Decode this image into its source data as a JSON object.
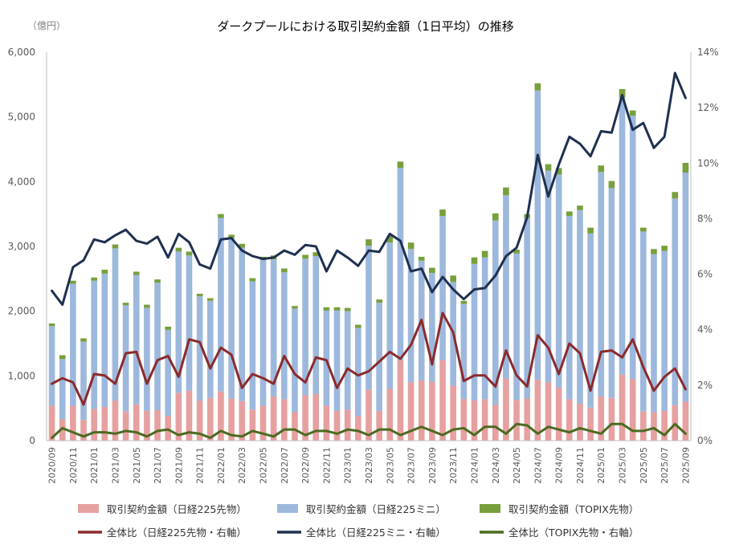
{
  "chart_data": {
    "type": "bar",
    "title": "ダークプールにおける取引契約金額（1日平均）の推移",
    "y_unit_label": "（億円）",
    "y_left": {
      "range": [
        0,
        6000
      ],
      "ticks": [
        0,
        1000,
        2000,
        3000,
        4000,
        5000,
        6000
      ],
      "tick_labels": [
        "0",
        "1,000",
        "2,000",
        "3,000",
        "4,000",
        "5,000",
        "6,000"
      ]
    },
    "y_right": {
      "range": [
        0,
        14
      ],
      "ticks": [
        0,
        2,
        4,
        6,
        8,
        10,
        12,
        14
      ],
      "tick_labels": [
        "0%",
        "2%",
        "4%",
        "6%",
        "8%",
        "10%",
        "12%",
        "14%"
      ]
    },
    "x_tick_labels": [
      "2020/09",
      "2020/11",
      "2021/01",
      "2021/03",
      "2021/05",
      "2021/07",
      "2021/09",
      "2021/11",
      "2022/01",
      "2022/03",
      "2022/05",
      "2022/07",
      "2022/09",
      "2022/11",
      "2023/01",
      "2023/03",
      "2023/05",
      "2023/07",
      "2023/09",
      "2023/11",
      "2024/01",
      "2024/03",
      "2024/05",
      "2024/07",
      "2024/09",
      "2024/11",
      "2025/01",
      "2025/03",
      "2025/05",
      "2025/07",
      "2025/09"
    ],
    "categories": [
      "2020/09",
      "2020/10",
      "2020/11",
      "2020/12",
      "2021/01",
      "2021/02",
      "2021/03",
      "2021/04",
      "2021/05",
      "2021/06",
      "2021/07",
      "2021/08",
      "2021/09",
      "2021/10",
      "2021/11",
      "2021/12",
      "2022/01",
      "2022/02",
      "2022/03",
      "2022/04",
      "2022/05",
      "2022/06",
      "2022/07",
      "2022/08",
      "2022/09",
      "2022/10",
      "2022/11",
      "2022/12",
      "2023/01",
      "2023/02",
      "2023/03",
      "2023/04",
      "2023/05",
      "2023/06",
      "2023/07",
      "2023/08",
      "2023/09",
      "2023/10",
      "2023/11",
      "2023/12",
      "2024/01",
      "2024/02",
      "2024/03",
      "2024/04",
      "2024/05",
      "2024/06",
      "2024/07",
      "2024/08",
      "2024/09",
      "2024/10",
      "2024/11",
      "2024/12",
      "2025/01",
      "2025/02",
      "2025/03",
      "2025/04",
      "2025/05",
      "2025/06",
      "2025/07",
      "2025/08",
      "2025/09"
    ],
    "series": [
      {
        "name": "取引契約金額（日経225先物）",
        "kind": "bar",
        "axis": "left",
        "color": "#E6A0A0",
        "values": [
          540,
          330,
          540,
          320,
          490,
          520,
          620,
          450,
          560,
          460,
          470,
          380,
          740,
          770,
          620,
          660,
          760,
          650,
          610,
          480,
          540,
          680,
          640,
          440,
          700,
          720,
          540,
          460,
          480,
          380,
          790,
          460,
          800,
          1240,
          900,
          930,
          910,
          1240,
          850,
          640,
          620,
          640,
          550,
          960,
          630,
          650,
          940,
          900,
          820,
          640,
          570,
          510,
          680,
          660,
          1020,
          950,
          450,
          440,
          460,
          550,
          600
        ]
      },
      {
        "name": "取引契約金額（日経225ミニ）",
        "kind": "bar",
        "axis": "left",
        "color": "#9DB8DD",
        "values": [
          1230,
          930,
          1880,
          1210,
          1980,
          2060,
          2350,
          1640,
          2000,
          1590,
          1970,
          1330,
          2180,
          2090,
          1610,
          1500,
          2680,
          2480,
          2370,
          1980,
          2250,
          2120,
          1960,
          1600,
          2110,
          2130,
          1470,
          1550,
          1520,
          1360,
          2220,
          1670,
          2260,
          2970,
          2060,
          1850,
          1680,
          2230,
          1600,
          1470,
          2110,
          2190,
          2850,
          2830,
          2260,
          2790,
          4470,
          3270,
          3290,
          2830,
          2990,
          2690,
          3470,
          3240,
          4280,
          4070,
          2780,
          2440,
          2470,
          3190,
          3540
        ]
      },
      {
        "name": "取引契約金額（TOPIX先物）",
        "kind": "bar",
        "axis": "left",
        "color": "#77A03C",
        "values": [
          40,
          60,
          50,
          50,
          50,
          60,
          60,
          40,
          50,
          50,
          50,
          50,
          60,
          60,
          40,
          40,
          60,
          50,
          60,
          50,
          50,
          60,
          60,
          40,
          60,
          60,
          50,
          50,
          50,
          50,
          100,
          50,
          100,
          100,
          100,
          60,
          80,
          100,
          100,
          50,
          100,
          100,
          110,
          120,
          60,
          60,
          110,
          100,
          100,
          70,
          70,
          90,
          100,
          110,
          130,
          80,
          60,
          80,
          80,
          100,
          150
        ]
      },
      {
        "name": "全体比（日経225先物・右軸）",
        "kind": "line",
        "axis": "right",
        "color": "#8B2B2B",
        "values": [
          2.05,
          2.25,
          2.1,
          1.3,
          2.4,
          2.35,
          2.05,
          3.15,
          3.2,
          2.05,
          2.9,
          3.05,
          2.3,
          3.65,
          3.55,
          2.6,
          3.35,
          3.1,
          1.9,
          2.4,
          2.25,
          2.05,
          3.05,
          2.4,
          2.1,
          3.0,
          2.9,
          1.9,
          2.6,
          2.35,
          2.5,
          2.85,
          3.2,
          2.95,
          3.45,
          4.35,
          2.75,
          4.6,
          3.9,
          2.15,
          2.35,
          2.35,
          1.95,
          3.25,
          2.35,
          1.95,
          3.8,
          3.35,
          2.4,
          3.5,
          3.15,
          1.8,
          3.2,
          3.25,
          3.0,
          3.65,
          2.65,
          1.8,
          2.3,
          2.6,
          1.85
        ]
      },
      {
        "name": "全体比（日経225ミニ・右軸）",
        "kind": "line",
        "axis": "right",
        "color": "#1F3050",
        "values": [
          5.4,
          4.9,
          6.25,
          6.5,
          7.25,
          7.15,
          7.4,
          7.6,
          7.2,
          7.1,
          7.35,
          6.6,
          7.45,
          7.15,
          6.35,
          6.2,
          7.25,
          7.3,
          6.85,
          6.65,
          6.55,
          6.6,
          6.85,
          6.7,
          7.05,
          7.0,
          6.1,
          6.85,
          6.6,
          6.3,
          6.85,
          6.8,
          7.45,
          7.2,
          6.1,
          6.2,
          5.35,
          5.9,
          5.45,
          5.1,
          5.45,
          5.5,
          5.95,
          6.65,
          6.95,
          8.05,
          10.3,
          8.8,
          9.95,
          10.95,
          10.7,
          10.25,
          11.15,
          11.1,
          12.45,
          11.2,
          11.45,
          10.55,
          10.95,
          13.25,
          12.35
        ]
      },
      {
        "name": "全体比（TOPIX先物・右軸）",
        "kind": "line",
        "axis": "right",
        "color": "#4A6B1F",
        "values": [
          0.1,
          0.45,
          0.3,
          0.15,
          0.3,
          0.3,
          0.25,
          0.35,
          0.3,
          0.15,
          0.35,
          0.4,
          0.2,
          0.3,
          0.25,
          0.1,
          0.35,
          0.2,
          0.15,
          0.35,
          0.25,
          0.15,
          0.4,
          0.4,
          0.2,
          0.35,
          0.35,
          0.25,
          0.4,
          0.35,
          0.2,
          0.4,
          0.4,
          0.2,
          0.35,
          0.5,
          0.35,
          0.2,
          0.4,
          0.45,
          0.2,
          0.5,
          0.5,
          0.25,
          0.6,
          0.55,
          0.25,
          0.5,
          0.4,
          0.3,
          0.45,
          0.35,
          0.25,
          0.6,
          0.6,
          0.35,
          0.35,
          0.45,
          0.2,
          0.6,
          0.25
        ]
      }
    ],
    "legend": {
      "position": "bottom",
      "columns": 3
    },
    "grid": false
  }
}
